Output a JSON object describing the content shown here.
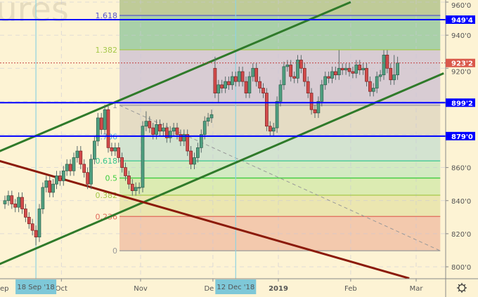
{
  "watermark": "Futures",
  "colors": {
    "background": "#fdf3d4",
    "up_candle": "#4f9f80",
    "down_candle": "#d24b4b",
    "horizontal_level": "#0000ff",
    "price_tag": "#d9584a",
    "trend_channel": "#2f7a2a",
    "trend_down": "#8b1a0a",
    "crosshair": "#8fd3e0"
  },
  "chart_data": {
    "type": "candlestick",
    "title": "",
    "ylim": [
      800,
      960
    ],
    "grid": true,
    "y_ticks": [
      "960'0",
      "940'0",
      "920'0",
      "860'0",
      "840'0",
      "820'0",
      "800'0"
    ],
    "y_tick_values": [
      960,
      940,
      920,
      860,
      840,
      820,
      800
    ],
    "x_ticks": [
      {
        "label": "ep",
        "bar": -1
      },
      {
        "label": "Oct",
        "bar": 17
      },
      {
        "label": "Nov",
        "bar": 40
      },
      {
        "label": "De",
        "bar": 61
      },
      {
        "label": "2019",
        "bar": 80,
        "bold": true
      },
      {
        "label": "Feb",
        "bar": 101
      },
      {
        "label": "Mar",
        "bar": 120
      }
    ],
    "highlighted_dates": [
      {
        "label": "18 Sep '18",
        "bar": 9
      },
      {
        "label": "12 Dec '18",
        "bar": 67
      }
    ],
    "ohlc": [
      [
        838,
        843,
        835,
        840
      ],
      [
        840,
        846,
        837,
        843
      ],
      [
        843,
        846,
        835,
        838
      ],
      [
        838,
        841,
        833,
        836
      ],
      [
        836,
        845,
        833,
        842
      ],
      [
        842,
        845,
        832,
        835
      ],
      [
        835,
        838,
        827,
        830
      ],
      [
        830,
        833,
        823,
        826
      ],
      [
        826,
        829,
        819,
        822
      ],
      [
        822,
        825,
        813,
        818
      ],
      [
        818,
        838,
        815,
        835
      ],
      [
        835,
        851,
        832,
        848
      ],
      [
        848,
        855,
        845,
        852
      ],
      [
        852,
        855,
        842,
        845
      ],
      [
        845,
        853,
        842,
        850
      ],
      [
        850,
        858,
        847,
        855
      ],
      [
        855,
        858,
        849,
        852
      ],
      [
        852,
        861,
        849,
        858
      ],
      [
        858,
        865,
        855,
        862
      ],
      [
        862,
        865,
        855,
        858
      ],
      [
        858,
        869,
        855,
        866
      ],
      [
        866,
        873,
        863,
        870
      ],
      [
        870,
        873,
        859,
        862
      ],
      [
        862,
        865,
        854,
        857
      ],
      [
        857,
        860,
        847,
        850
      ],
      [
        850,
        868,
        847,
        865
      ],
      [
        865,
        879,
        862,
        876
      ],
      [
        876,
        893,
        873,
        890
      ],
      [
        890,
        893,
        880,
        883
      ],
      [
        883,
        898,
        880,
        895
      ],
      [
        895,
        898,
        869,
        872
      ],
      [
        872,
        875,
        867,
        870
      ],
      [
        870,
        875,
        867,
        872
      ],
      [
        872,
        875,
        863,
        866
      ],
      [
        866,
        869,
        857,
        860
      ],
      [
        860,
        863,
        852,
        855
      ],
      [
        855,
        858,
        847,
        850
      ],
      [
        850,
        853,
        843,
        846
      ],
      [
        846,
        851,
        843,
        848
      ],
      [
        848,
        851,
        844,
        848
      ],
      [
        848,
        888,
        845,
        885
      ],
      [
        885,
        894,
        882,
        888
      ],
      [
        888,
        891,
        881,
        884
      ],
      [
        884,
        887,
        877,
        880
      ],
      [
        880,
        889,
        877,
        886
      ],
      [
        886,
        889,
        879,
        882
      ],
      [
        882,
        887,
        879,
        884
      ],
      [
        884,
        887,
        875,
        878
      ],
      [
        878,
        885,
        875,
        882
      ],
      [
        882,
        887,
        879,
        884
      ],
      [
        884,
        887,
        877,
        880
      ],
      [
        880,
        883,
        873,
        876
      ],
      [
        876,
        883,
        873,
        880
      ],
      [
        880,
        883,
        867,
        870
      ],
      [
        870,
        873,
        859,
        862
      ],
      [
        862,
        869,
        859,
        866
      ],
      [
        866,
        875,
        863,
        872
      ],
      [
        872,
        883,
        869,
        880
      ],
      [
        880,
        891,
        877,
        888
      ],
      [
        888,
        893,
        885,
        890
      ],
      [
        890,
        895,
        887,
        892
      ],
      [
        920,
        927,
        902,
        905
      ],
      [
        905,
        913,
        899,
        910
      ],
      [
        910,
        913,
        905,
        908
      ],
      [
        908,
        915,
        905,
        912
      ],
      [
        912,
        915,
        907,
        910
      ],
      [
        910,
        918,
        907,
        915
      ],
      [
        915,
        918,
        909,
        912
      ],
      [
        912,
        921,
        909,
        918
      ],
      [
        918,
        921,
        909,
        912
      ],
      [
        912,
        915,
        902,
        905
      ],
      [
        905,
        918,
        902,
        915
      ],
      [
        915,
        923,
        912,
        920
      ],
      [
        920,
        923,
        909,
        912
      ],
      [
        912,
        915,
        905,
        908
      ],
      [
        908,
        911,
        902,
        905
      ],
      [
        905,
        908,
        882,
        885
      ],
      [
        885,
        888,
        879,
        882
      ],
      [
        882,
        887,
        879,
        884
      ],
      [
        884,
        903,
        881,
        900
      ],
      [
        900,
        913,
        897,
        910
      ],
      [
        910,
        924,
        907,
        921
      ],
      [
        921,
        925,
        918,
        922
      ],
      [
        922,
        925,
        912,
        915
      ],
      [
        915,
        918,
        911,
        914
      ],
      [
        914,
        928,
        911,
        925
      ],
      [
        925,
        928,
        917,
        920
      ],
      [
        920,
        923,
        909,
        912
      ],
      [
        912,
        915,
        902,
        905
      ],
      [
        905,
        908,
        892,
        895
      ],
      [
        895,
        898,
        890,
        893
      ],
      [
        893,
        903,
        890,
        900
      ],
      [
        900,
        913,
        897,
        910
      ],
      [
        910,
        918,
        907,
        915
      ],
      [
        915,
        918,
        911,
        914
      ],
      [
        914,
        921,
        911,
        918
      ],
      [
        918,
        921,
        913,
        916
      ],
      [
        916,
        931,
        913,
        920
      ],
      [
        920,
        923,
        916,
        919
      ],
      [
        919,
        923,
        916,
        920
      ],
      [
        920,
        923,
        915,
        918
      ],
      [
        918,
        921,
        914,
        917
      ],
      [
        917,
        925,
        914,
        922
      ],
      [
        922,
        925,
        916,
        919
      ],
      [
        919,
        923,
        916,
        920
      ],
      [
        920,
        923,
        909,
        912
      ],
      [
        912,
        915,
        903,
        906
      ],
      [
        906,
        911,
        903,
        908
      ],
      [
        908,
        918,
        905,
        915
      ],
      [
        915,
        919,
        912,
        916
      ],
      [
        916,
        931,
        913,
        928
      ],
      [
        928,
        931,
        917,
        920
      ],
      [
        920,
        923,
        910,
        913
      ],
      [
        913,
        928,
        910,
        916
      ],
      [
        916,
        927,
        913,
        923.2
      ]
    ],
    "fibonacci": {
      "from_bar": 30,
      "to_bar": 127,
      "price_0": 809.7,
      "price_1": 897.6,
      "levels": [
        {
          "ratio": 0,
          "label": "0",
          "color": "#9a9a9a",
          "fill": "#f3c9ad"
        },
        {
          "ratio": 0.236,
          "label": "0.236",
          "color": "#e06a5a",
          "fill": "#ebe6b0"
        },
        {
          "ratio": 0.382,
          "label": "0.382",
          "color": "#a6c84a",
          "fill": "#dcebb2"
        },
        {
          "ratio": 0.5,
          "label": "0.5",
          "color": "#3fcc3f",
          "fill": "#d3eac2"
        },
        {
          "ratio": 0.618,
          "label": "0.618",
          "color": "#34c48c",
          "fill": "#d3e3d0"
        },
        {
          "ratio": 0.786,
          "label": "0.786",
          "color": "#4aa6e6",
          "fill": "#e5dcc4"
        },
        {
          "ratio": 1,
          "label": "1",
          "color": "#9a9a9a",
          "fill": "#d8ccd3"
        },
        {
          "ratio": 1.382,
          "label": "1.382",
          "color": "#a6c84a",
          "fill": "#a9d0a8"
        },
        {
          "ratio": 1.618,
          "label": "1.618",
          "color": "#5656cc",
          "fill": "#bfcb98"
        }
      ]
    },
    "horizontal_levels": [
      {
        "price": 949.4,
        "label": "949'4"
      },
      {
        "price": 899.2,
        "label": "899'2"
      },
      {
        "price": 879.0,
        "label": "879'0"
      }
    ],
    "last_price": {
      "price": 923.2,
      "label": "923'2"
    },
    "trend_lines": [
      {
        "name": "",
        "color": "#2f7a2a",
        "from": {
          "bar": -1,
          "price": 869.8
        },
        "to": {
          "bar": 101,
          "price": 960
        }
      },
      {
        "name": "",
        "color": "#2f7a2a",
        "from": {
          "bar": -1,
          "price": 801.6
        },
        "to": {
          "bar": 128,
          "price": 917.0
        }
      },
      {
        "name": "",
        "color": "#8b1a0a",
        "from": {
          "bar": -1,
          "price": 864.0
        },
        "to": {
          "bar": 118,
          "price": 793.0
        }
      }
    ]
  },
  "toolbar": {
    "settings_icon": "settings-gear-icon"
  }
}
